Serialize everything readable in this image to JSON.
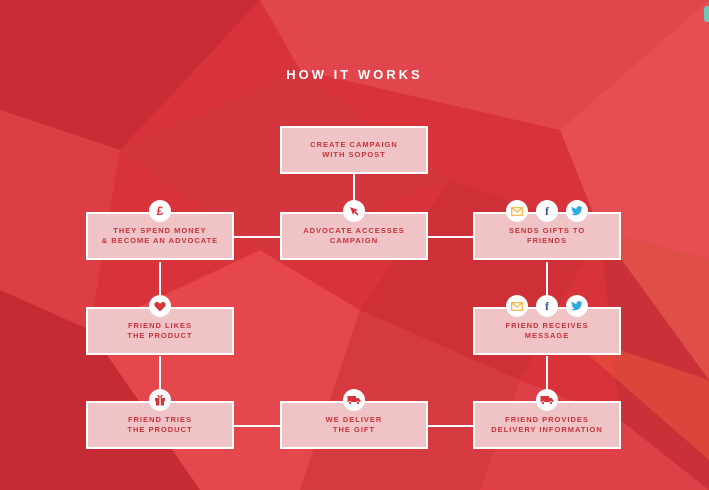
{
  "page": {
    "title": "HOW IT WORKS"
  },
  "boxes": {
    "create_campaign": "CREATE CAMPAIGN\nWITH SOPOST",
    "advocate_accesses": "ADVOCATE ACCESSES\nCAMPAIGN",
    "spend_money": "THEY SPEND MONEY\n& BECOME AN ADVOCATE",
    "sends_gifts": "SENDS GIFTS TO\nFRIENDS",
    "friend_likes": "FRIEND LIKES\nTHE PRODUCT",
    "friend_receives": "FRIEND RECEIVES\nMESSAGE",
    "friend_tries": "FRIEND TRIES\nTHE PRODUCT",
    "we_deliver": "WE DELIVER\nTHE GIFT",
    "friend_provides": "FRIEND PROVIDES\nDELIVERY INFORMATION"
  },
  "icons": {
    "pound": "£",
    "facebook": "f"
  },
  "colors": {
    "background": "#d8323a",
    "box_fill": "#f0c4c6",
    "box_text": "#c8333a",
    "line": "#ffffff",
    "email_icon": "#f2b84b",
    "twitter_icon": "#2fa9e0",
    "facebook_icon": "#3b5998"
  }
}
